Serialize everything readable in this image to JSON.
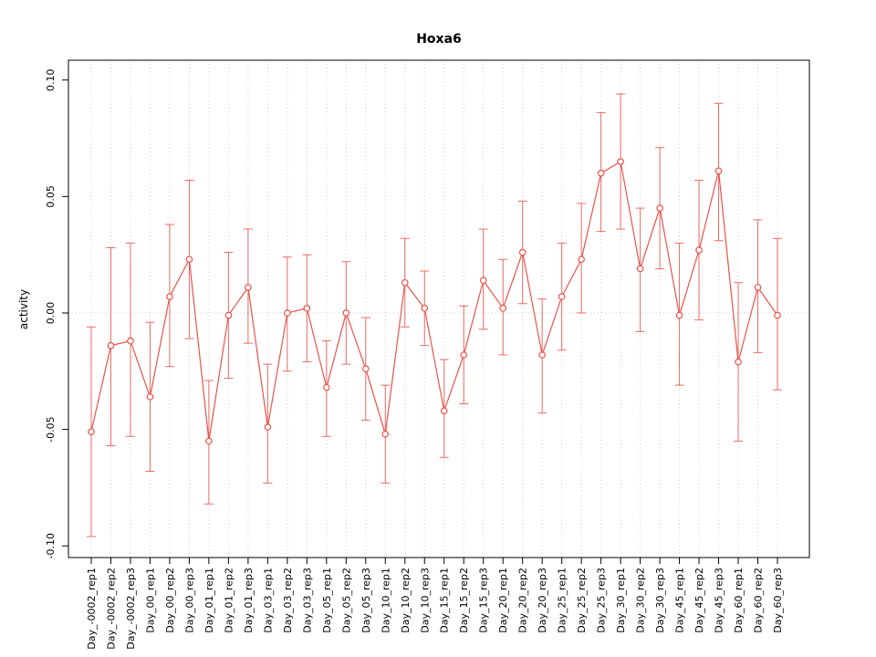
{
  "chart_data": {
    "type": "line",
    "title": "Hoxa6",
    "xlabel": "",
    "ylabel": "activity",
    "legend_position": "none",
    "grid": "vertical dotted gridline per category, dotted horizontal line at y=0",
    "ylim": [
      -0.1,
      0.1
    ],
    "yticks": [
      -0.1,
      -0.05,
      0.0,
      0.05,
      0.1
    ],
    "ytick_labels": [
      "-0.10",
      "-0.05",
      "0.00",
      "0.05",
      "0.10"
    ],
    "marker": "open-circle",
    "error_bars": true,
    "colors": {
      "series": "#e8524a",
      "grid": "#cfcfcf",
      "axis": "#000000",
      "background": "#ffffff"
    },
    "categories": [
      "Day_-0002_rep1",
      "Day_-0002_rep2",
      "Day_-0002_rep3",
      "Day_00_rep1",
      "Day_00_rep2",
      "Day_00_rep3",
      "Day_01_rep1",
      "Day_01_rep2",
      "Day_01_rep3",
      "Day_03_rep1",
      "Day_03_rep2",
      "Day_03_rep3",
      "Day_05_rep1",
      "Day_05_rep2",
      "Day_05_rep3",
      "Day_10_rep1",
      "Day_10_rep2",
      "Day_10_rep3",
      "Day_15_rep1",
      "Day_15_rep2",
      "Day_15_rep3",
      "Day_20_rep1",
      "Day_20_rep2",
      "Day_20_rep3",
      "Day_25_rep1",
      "Day_25_rep2",
      "Day_25_rep3",
      "Day_30_rep1",
      "Day_30_rep2",
      "Day_30_rep3",
      "Day_45_rep1",
      "Day_45_rep2",
      "Day_45_rep3",
      "Day_60_rep1",
      "Day_60_rep2",
      "Day_60_rep3"
    ],
    "values": [
      -0.051,
      -0.014,
      -0.012,
      -0.036,
      0.007,
      0.023,
      -0.055,
      -0.001,
      0.011,
      -0.049,
      0.0,
      0.002,
      -0.032,
      0.0,
      -0.024,
      -0.052,
      0.013,
      0.002,
      -0.042,
      -0.018,
      0.014,
      0.002,
      0.026,
      -0.018,
      0.007,
      0.023,
      0.06,
      0.065,
      0.019,
      0.045,
      -0.001,
      0.027,
      0.061,
      -0.021,
      0.011,
      -0.001
    ],
    "error_low": [
      -0.096,
      -0.057,
      -0.053,
      -0.068,
      -0.023,
      -0.011,
      -0.082,
      -0.028,
      -0.013,
      -0.073,
      -0.025,
      -0.021,
      -0.053,
      -0.022,
      -0.046,
      -0.073,
      -0.006,
      -0.014,
      -0.062,
      -0.039,
      -0.007,
      -0.018,
      0.004,
      -0.043,
      -0.016,
      0.0,
      0.035,
      0.036,
      -0.008,
      0.019,
      -0.031,
      -0.003,
      0.031,
      -0.055,
      -0.017,
      -0.033
    ],
    "error_high": [
      -0.006,
      0.028,
      0.03,
      -0.004,
      0.038,
      0.057,
      -0.029,
      0.026,
      0.036,
      -0.022,
      0.024,
      0.025,
      -0.012,
      0.022,
      -0.002,
      -0.031,
      0.032,
      0.018,
      -0.02,
      0.003,
      0.036,
      0.023,
      0.048,
      0.006,
      0.03,
      0.047,
      0.086,
      0.094,
      0.045,
      0.071,
      0.03,
      0.057,
      0.09,
      0.013,
      0.04,
      0.032
    ]
  }
}
